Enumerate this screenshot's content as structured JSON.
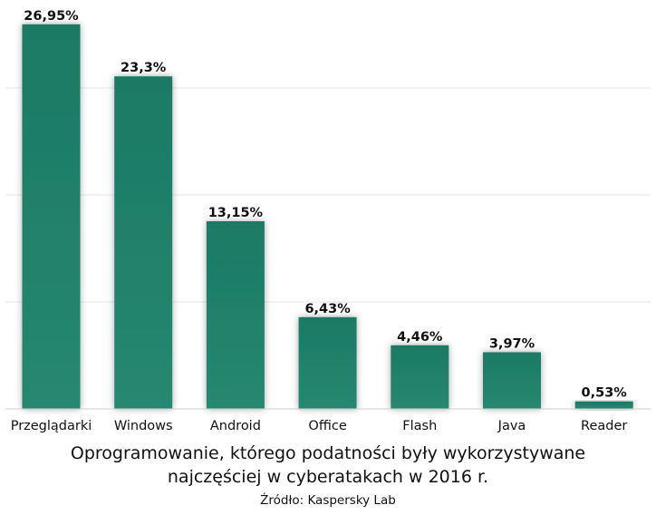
{
  "chart_data": {
    "type": "bar",
    "categories": [
      "Przeglądarki",
      "Windows",
      "Android",
      "Office",
      "Flash",
      "Java",
      "Reader"
    ],
    "values": [
      26.95,
      23.3,
      13.15,
      6.43,
      4.46,
      3.97,
      0.53
    ],
    "value_labels": [
      "26,95%",
      "23,3%",
      "13,15%",
      "6,43%",
      "4,46%",
      "3,97%",
      "0,53%"
    ],
    "title_lines": [
      "Oprogramowanie, którego podatności były wykorzystywane",
      "najczęściej w cyberatakach w 2016 r."
    ],
    "source": "Źródło: Kaspersky Lab",
    "xlabel": "",
    "ylabel": "",
    "ylim": [
      0,
      27
    ],
    "grid": true,
    "bar_color": "#1b7a64",
    "bar_color_light": "#26886f"
  }
}
